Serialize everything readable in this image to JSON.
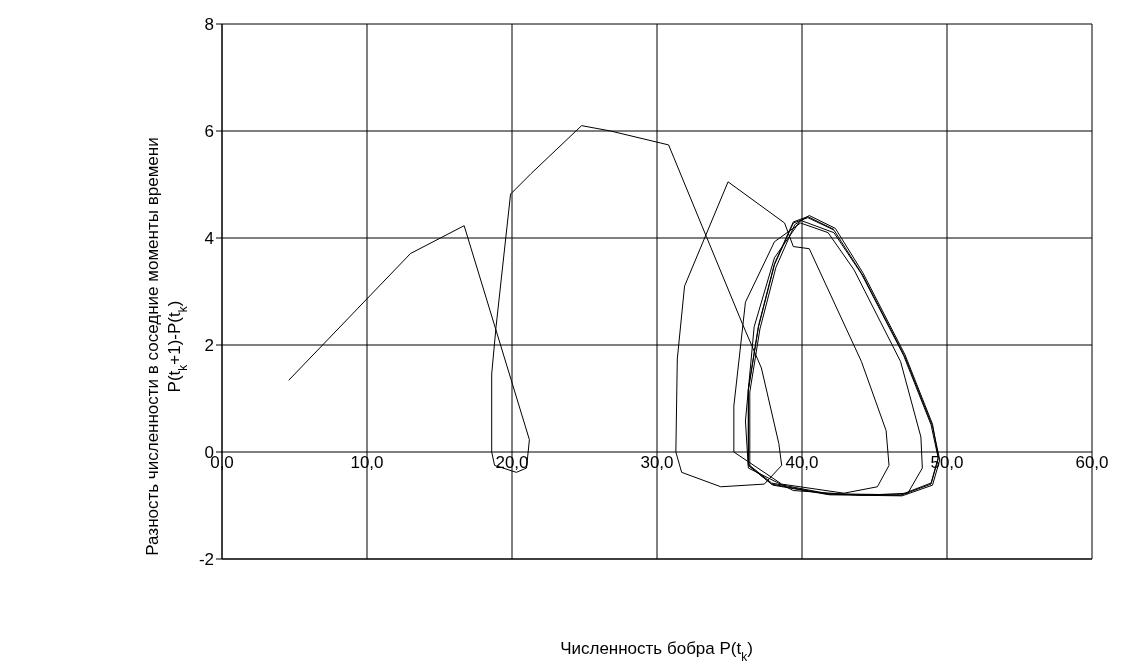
{
  "chart_data": {
    "type": "line",
    "xlabel": "Численность бобра P(t$_{k}$)",
    "ylabel": "Разность  численности в соседние моменты времени\nP(t$_{k}$+1)-P(t$_{k}$)",
    "x": [
      4.6,
      13.0,
      16.7,
      21.2,
      21.0,
      20.3,
      18.8,
      18.6,
      18.6,
      18.9,
      19.9,
      21.3,
      24.8,
      26.8,
      30.8,
      33.4,
      35.9,
      37.2,
      38.4,
      38.6,
      37.4,
      34.4,
      31.7,
      31.3,
      31.4,
      31.9,
      34.9,
      38.8,
      39.4,
      40.5,
      44.1,
      45.8,
      46.0,
      45.2,
      42.9,
      38.6,
      35.3,
      35.3,
      36.1,
      38.1,
      39.9,
      41.8,
      43.6,
      46.8,
      48.2,
      48.3,
      47.3,
      44.1,
      39.4,
      36.3,
      36.1,
      36.7,
      38.1,
      39.9,
      42.2,
      44.1,
      47.0,
      48.9,
      49.4,
      48.9,
      46.8,
      41.8,
      37.9,
      36.3,
      36.3,
      37.0,
      38.1,
      39.4,
      40.4,
      42.2,
      44.2,
      47.1,
      49.0,
      49.5,
      49.0,
      46.9,
      41.9,
      38.0,
      36.4,
      36.4,
      37.1,
      38.2,
      39.5,
      40.5,
      42.3,
      44.2,
      47.1,
      49.0,
      49.4,
      48.9,
      46.8,
      41.8,
      37.9,
      36.3,
      36.3,
      37.0,
      38.1,
      39.4,
      40.4,
      42.2
    ],
    "series": [
      {
        "color": "#000000",
        "values": [
          1.34,
          3.71,
          4.23,
          0.23,
          -0.3,
          -0.38,
          -0.25,
          0,
          1.46,
          2.34,
          4.82,
          5.2,
          6.1,
          6.0,
          5.74,
          4.03,
          2.39,
          1.57,
          0.16,
          -0.25,
          -0.6,
          -0.65,
          -0.38,
          0,
          1.74,
          3.1,
          5.05,
          4.28,
          3.84,
          3.8,
          1.69,
          0.4,
          -0.25,
          -0.65,
          -0.77,
          -0.6,
          0,
          0.86,
          2.8,
          3.93,
          4.28,
          4.1,
          3.4,
          1.69,
          0.28,
          -0.3,
          -0.77,
          -0.81,
          -0.72,
          -0.3,
          0.58,
          2.34,
          3.63,
          4.33,
          4.1,
          3.33,
          1.81,
          0.51,
          -0.12,
          -0.6,
          -0.81,
          -0.79,
          -0.6,
          -0.25,
          1.16,
          2.34,
          3.5,
          4.28,
          4.38,
          4.15,
          3.3,
          1.78,
          0.48,
          -0.15,
          -0.62,
          -0.82,
          -0.8,
          -0.62,
          -0.27,
          1.12,
          2.3,
          3.45,
          4.25,
          4.42,
          4.18,
          3.35,
          1.82,
          0.52,
          -0.1,
          -0.58,
          -0.8,
          -0.78,
          -0.58,
          -0.23,
          1.18,
          2.36,
          3.52,
          4.3,
          4.4,
          4.16
        ]
      }
    ],
    "xlim": [
      0,
      60
    ],
    "xticks": [
      {
        "value": 0,
        "label": "0,0"
      },
      {
        "value": 10,
        "label": "10,0"
      },
      {
        "value": 20,
        "label": "20,0"
      },
      {
        "value": 30,
        "label": "30,0"
      },
      {
        "value": 40,
        "label": "40,0"
      },
      {
        "value": 50,
        "label": "50,0"
      },
      {
        "value": 60,
        "label": "60,0"
      }
    ],
    "ylim": [
      -2,
      8
    ],
    "yticks": [
      -2,
      0,
      2,
      4,
      6,
      8
    ],
    "grid": true,
    "marker": "none",
    "line_style": "solid"
  }
}
